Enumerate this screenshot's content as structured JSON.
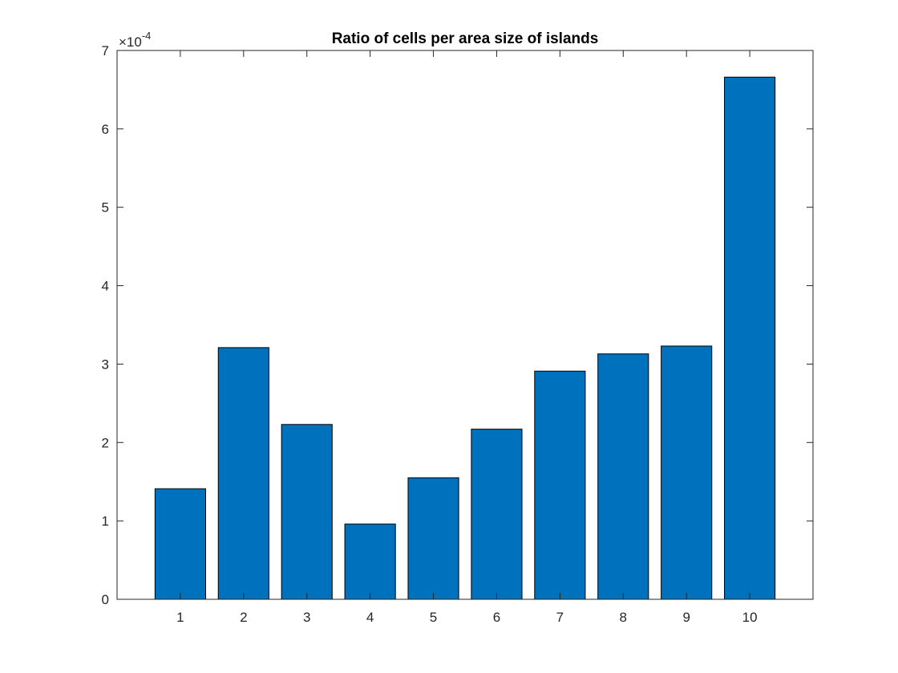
{
  "chart_data": {
    "type": "bar",
    "title": "Ratio of cells per area size of islands",
    "xlabel": "",
    "ylabel": "",
    "categories": [
      "1",
      "2",
      "3",
      "4",
      "5",
      "6",
      "7",
      "8",
      "9",
      "10"
    ],
    "values": [
      1.41,
      3.21,
      2.23,
      0.96,
      1.55,
      2.17,
      2.91,
      3.13,
      3.23,
      6.66
    ],
    "y_multiplier": "×10",
    "y_exponent": "-4",
    "ylim": [
      0,
      7
    ],
    "yticks": [
      "0",
      "1",
      "2",
      "3",
      "4",
      "5",
      "6",
      "7"
    ],
    "grid": false,
    "legend": "none",
    "bar_color": "#0072BD",
    "edge_color": "#000000"
  }
}
